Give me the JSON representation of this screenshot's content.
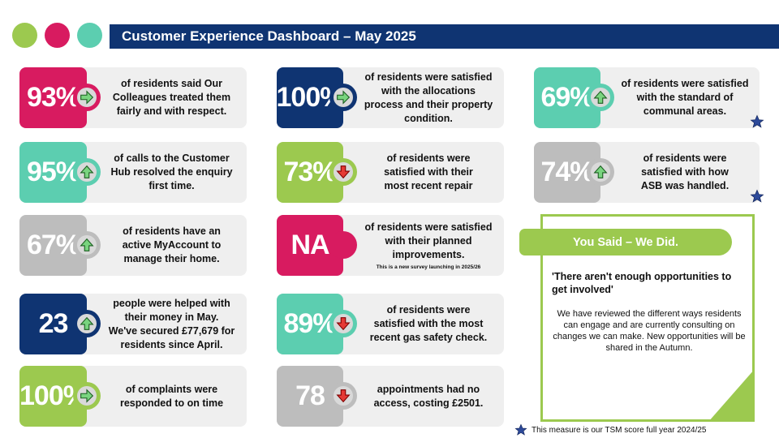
{
  "header": {
    "title": "Customer Experience Dashboard – May 2025",
    "dots": [
      "#9cc94f",
      "#d81b60",
      "#5cceb0"
    ]
  },
  "cards": [
    {
      "value": "93%",
      "color": "#d81b60",
      "arrow": "right",
      "text": [
        "of residents said Our",
        "Colleagues treated them",
        "fairly and with respect."
      ]
    },
    {
      "value": "95%",
      "color": "#5cceb0",
      "arrow": "up",
      "text": [
        "of calls to the Customer",
        "Hub resolved the enquiry",
        "first time."
      ]
    },
    {
      "value": "67%",
      "color": "#bdbdbd",
      "arrow": "up",
      "text": [
        "of residents have an",
        "active MyAccount to",
        "manage their home."
      ]
    },
    {
      "value": "23",
      "color": "#0f3472",
      "arrow": "up",
      "text": [
        "people were helped with",
        "their money in May.",
        "We've secured £77,679 for",
        "residents since April."
      ]
    },
    {
      "value": "100%",
      "color": "#9cc94f",
      "arrow": "right",
      "text": [
        "of complaints were",
        "responded to on time"
      ]
    },
    {
      "value": "100%",
      "color": "#0f3472",
      "arrow": "right",
      "text": [
        "of residents were satisfied",
        "with the allocations",
        "process and their property",
        "condition."
      ]
    },
    {
      "value": "73%",
      "color": "#9cc94f",
      "arrow": "down",
      "text": [
        "of residents were",
        "satisfied with their",
        "most recent repair"
      ]
    },
    {
      "value": "NA",
      "color": "#d81b60",
      "arrow": "none",
      "text": [
        "of residents were satisfied",
        "with their planned",
        "improvements."
      ],
      "note": "This is a new survey launching in 2025/26"
    },
    {
      "value": "89%",
      "color": "#5cceb0",
      "arrow": "down",
      "text": [
        "of residents were",
        "satisfied with the most",
        "recent gas safety check."
      ]
    },
    {
      "value": "78",
      "color": "#bdbdbd",
      "arrow": "down",
      "text": [
        "appointments had no",
        "access, costing £2501."
      ]
    },
    {
      "value": "69%",
      "color": "#5cceb0",
      "arrow": "up",
      "star": true,
      "text": [
        "of residents were satisfied",
        "with the standard of",
        "communal areas."
      ]
    },
    {
      "value": "74%",
      "color": "#bdbdbd",
      "arrow": "up",
      "star": true,
      "text": [
        "of residents were",
        "satisfied with how",
        "ASB was handled."
      ]
    }
  ],
  "panel": {
    "tab": "You Said – We Did.",
    "quote": "'There aren't enough opportunities to get involved'",
    "body": "We have reviewed the different ways residents can engage and are currently consulting on changes we can make. New opportunities will be shared in the Autumn."
  },
  "footnote": "This measure is our TSM score full year 2024/25",
  "colors": {
    "navy": "#0f3472",
    "green": "#9cc94f",
    "pink": "#d81b60",
    "teal": "#5cceb0",
    "grey": "#bdbdbd",
    "card_bg": "#efefef",
    "arrow_fill": "#79d47f",
    "arrow_down": "#e53935",
    "star": "#2d4a9a"
  },
  "icons": {
    "up": "arrow-up-icon",
    "down": "arrow-down-icon",
    "right": "arrow-right-icon",
    "star": "star-icon"
  }
}
